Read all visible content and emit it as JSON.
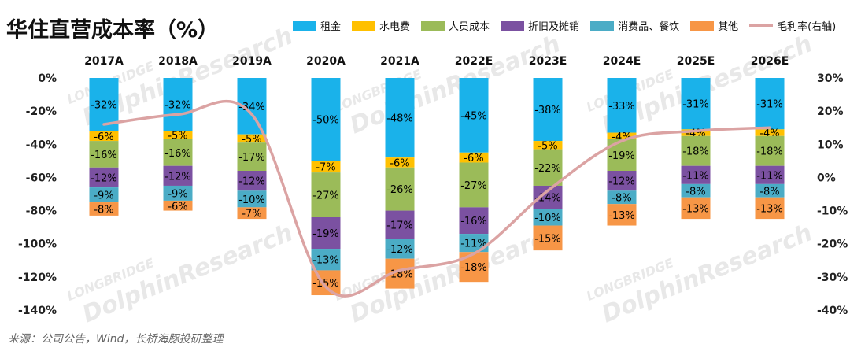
{
  "title": "华住直营成本率（%）",
  "source": "来源：公司公告，Wind，长桥海豚投研整理",
  "colors": {
    "rent": "#1ab2ea",
    "utilities": "#ffc000",
    "labor": "#9bbb59",
    "depreciation": "#7b51a1",
    "consumables": "#4bacc6",
    "other": "#f79646",
    "gross_margin": "#dba3a3"
  },
  "chart_data": {
    "type": "bar",
    "stacked": true,
    "categories": [
      "2017A",
      "2018A",
      "2019A",
      "2020A",
      "2021A",
      "2022E",
      "2023E",
      "2024E",
      "2025E",
      "2026E"
    ],
    "series": [
      {
        "name": "租金",
        "key": "rent",
        "values": [
          -32,
          -32,
          -34,
          -50,
          -48,
          -45,
          -38,
          -33,
          -31,
          -31
        ]
      },
      {
        "name": "水电费",
        "key": "utilities",
        "values": [
          -6,
          -5,
          -5,
          -7,
          -6,
          -6,
          -5,
          -4,
          -4,
          -4
        ]
      },
      {
        "name": "人员成本",
        "key": "labor",
        "values": [
          -16,
          -16,
          -17,
          -27,
          -26,
          -27,
          -22,
          -19,
          -18,
          -18
        ]
      },
      {
        "name": "折旧及摊销",
        "key": "depreciation",
        "values": [
          -12,
          -12,
          -12,
          -19,
          -17,
          -16,
          -14,
          -12,
          -11,
          -11
        ]
      },
      {
        "name": "消费品、餐饮",
        "key": "consumables",
        "values": [
          -9,
          -9,
          -10,
          -13,
          -12,
          -11,
          -10,
          -8,
          -8,
          -8
        ]
      },
      {
        "name": "其他",
        "key": "other",
        "values": [
          -8,
          -6,
          -7,
          -15,
          -18,
          -18,
          -15,
          -13,
          -13,
          -13
        ]
      }
    ],
    "line_series": {
      "name": "毛利率(右轴)",
      "key": "gross_margin",
      "values": [
        16,
        19,
        19,
        -33,
        -28,
        -23,
        -4,
        11,
        14,
        15
      ]
    },
    "y_left": {
      "min": -140,
      "max": 0,
      "ticks": [
        "0%",
        "-20%",
        "-40%",
        "-60%",
        "-80%",
        "-100%",
        "-120%",
        "-140%"
      ]
    },
    "y_right": {
      "min": -40,
      "max": 30,
      "ticks": [
        "30%",
        "20%",
        "10%",
        "0%",
        "-10%",
        "-20%",
        "-30%",
        "-40%"
      ]
    },
    "x_axis_position": "top",
    "legend_position": "top",
    "grid": false
  },
  "watermarks": [
    "LONGBRIDGE",
    "DolphinResearch"
  ]
}
